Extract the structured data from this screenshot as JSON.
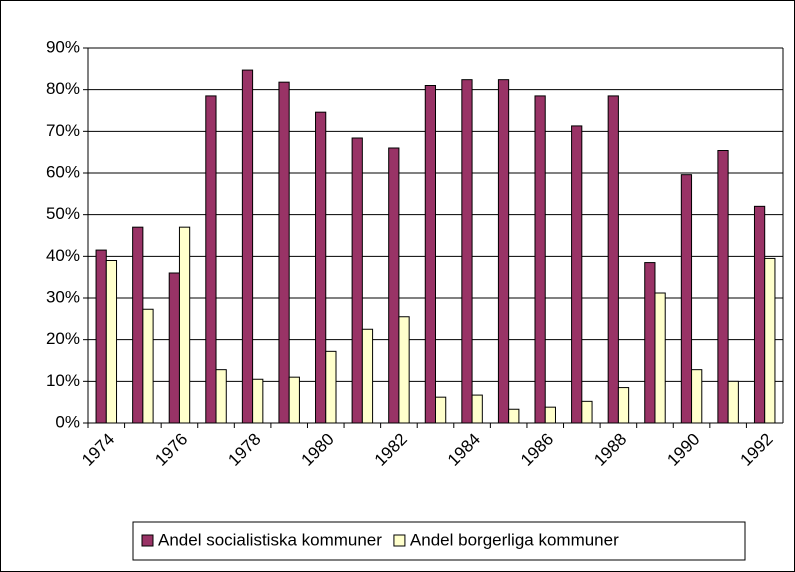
{
  "chart_data": {
    "type": "bar",
    "categories": [
      "1974",
      null,
      "1976",
      null,
      "1978",
      null,
      "1980",
      null,
      "1982",
      null,
      "1984",
      null,
      "1986",
      null,
      "1988",
      null,
      "1990",
      null,
      "1992"
    ],
    "series": [
      {
        "name": "Andel socialistiska kommuner",
        "color": "#993366",
        "values": [
          41.5,
          47,
          36,
          78.5,
          84.7,
          81.8,
          74.6,
          68.4,
          66,
          81,
          82.4,
          82.4,
          78.5,
          71.3,
          78.5,
          38.5,
          59.6,
          65.4,
          52
        ]
      },
      {
        "name": "Andel borgerliga kommuner",
        "color": "#ffffcc",
        "values": [
          39,
          27.3,
          47,
          12.8,
          10.5,
          11,
          17.2,
          22.5,
          25.5,
          6.2,
          6.7,
          3.3,
          3.8,
          5.2,
          8.5,
          31.2,
          12.8,
          10,
          39.5
        ]
      }
    ],
    "ylim": [
      0,
      90
    ],
    "yticks": [
      {
        "value": 0,
        "label": "0%"
      },
      {
        "value": 10,
        "label": "10%"
      },
      {
        "value": 20,
        "label": "20%"
      },
      {
        "value": 30,
        "label": "30%"
      },
      {
        "value": 40,
        "label": "40%"
      },
      {
        "value": 50,
        "label": "50%"
      },
      {
        "value": 60,
        "label": "60%"
      },
      {
        "value": 70,
        "label": "70%"
      },
      {
        "value": 80,
        "label": "80%"
      },
      {
        "value": 90,
        "label": "90%"
      }
    ],
    "grid": true,
    "legend": "bottom"
  }
}
